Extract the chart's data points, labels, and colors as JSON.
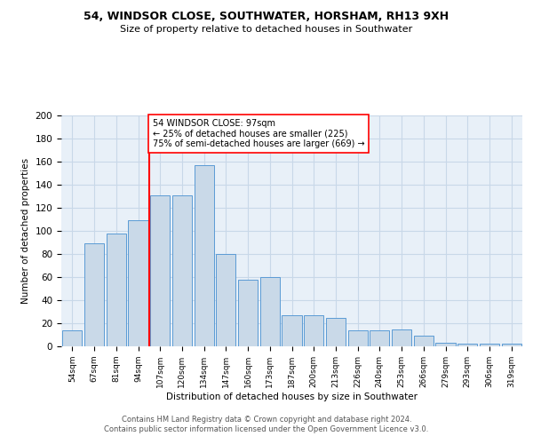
{
  "title1": "54, WINDSOR CLOSE, SOUTHWATER, HORSHAM, RH13 9XH",
  "title2": "Size of property relative to detached houses in Southwater",
  "xlabel": "Distribution of detached houses by size in Southwater",
  "ylabel": "Number of detached properties",
  "bar_labels": [
    "54sqm",
    "67sqm",
    "81sqm",
    "94sqm",
    "107sqm",
    "120sqm",
    "134sqm",
    "147sqm",
    "160sqm",
    "173sqm",
    "187sqm",
    "200sqm",
    "213sqm",
    "226sqm",
    "240sqm",
    "253sqm",
    "266sqm",
    "279sqm",
    "293sqm",
    "306sqm",
    "319sqm"
  ],
  "bar_values": [
    14,
    89,
    98,
    109,
    131,
    131,
    157,
    80,
    58,
    60,
    27,
    27,
    25,
    14,
    14,
    15,
    9,
    3,
    2,
    2,
    2
  ],
  "bar_color": "#c9d9e8",
  "bar_edge_color": "#5b9bd5",
  "vline_x": 3.5,
  "vline_color": "red",
  "annotation_text": "54 WINDSOR CLOSE: 97sqm\n← 25% of detached houses are smaller (225)\n75% of semi-detached houses are larger (669) →",
  "annotation_box_color": "white",
  "annotation_box_edge_color": "red",
  "grid_color": "#c8d8e8",
  "background_color": "#e8f0f8",
  "footer_line1": "Contains HM Land Registry data © Crown copyright and database right 2024.",
  "footer_line2": "Contains public sector information licensed under the Open Government Licence v3.0.",
  "ylim": [
    0,
    200
  ],
  "yticks": [
    0,
    20,
    40,
    60,
    80,
    100,
    120,
    140,
    160,
    180,
    200
  ]
}
